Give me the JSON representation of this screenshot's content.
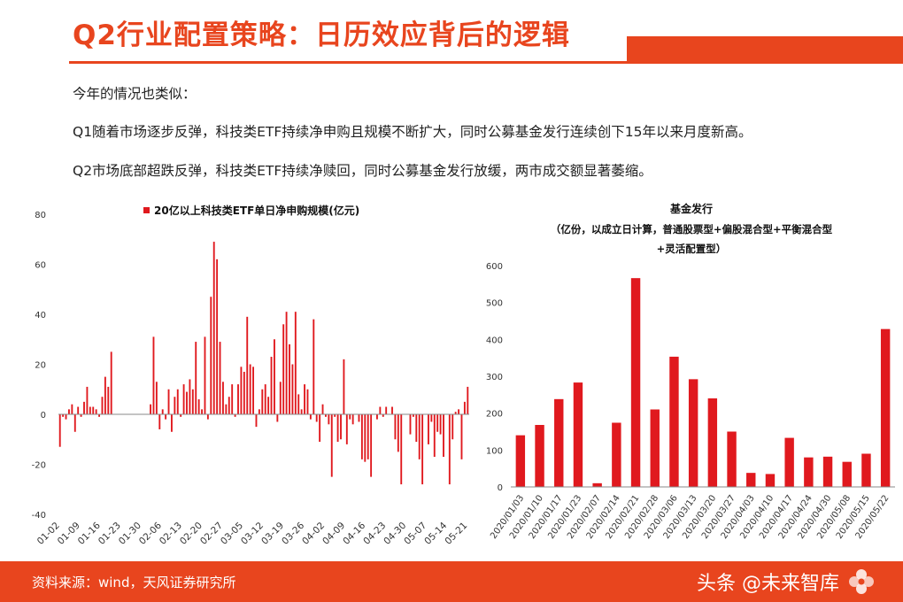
{
  "slide": {
    "title": "Q2行业配置策略：日历效应背后的逻辑",
    "paragraphs": [
      "今年的情况也类似：",
      "Q1随着市场逐步反弹，科技类ETF持续净申购且规模不断扩大，同时公募基金发行连续创下15年以来月度新高。",
      "Q2市场底部超跌反弹，科技类ETF持续净赎回，同时公募基金发行放缓，两市成交额显著萎缩。"
    ],
    "footer_source": "资料来源：wind，天风证券研究所",
    "watermark": "头条 @未来智库",
    "colors": {
      "accent": "#e8451e",
      "bar": "#e0191e"
    }
  },
  "chart_data": [
    {
      "type": "bar",
      "title": "20亿以上科技类ETF单日净申购规模(亿元)",
      "legend": "top",
      "ylim": [
        -40,
        80
      ],
      "yticks": [
        80,
        60,
        40,
        20,
        0,
        -20,
        -40
      ],
      "xtick_labels": [
        "01-02",
        "01-09",
        "01-16",
        "01-23",
        "01-30",
        "02-06",
        "02-13",
        "02-20",
        "02-27",
        "03-05",
        "03-12",
        "03-19",
        "03-26",
        "04-02",
        "04-09",
        "04-16",
        "04-23",
        "04-30",
        "05-07",
        "05-14",
        "05-21"
      ],
      "values": [
        -13,
        -1,
        -2,
        2,
        4,
        -7,
        3,
        -1,
        5,
        11,
        3,
        3,
        2,
        -1,
        7,
        15,
        11,
        25,
        0,
        0,
        0,
        0,
        0,
        0,
        0,
        0,
        0,
        0,
        0,
        0,
        4,
        31,
        13,
        -6,
        2,
        -2,
        10,
        -7,
        7,
        10,
        -1,
        12,
        9,
        14,
        10,
        29,
        6,
        2,
        31,
        -2,
        47,
        69,
        62,
        29,
        13,
        4,
        7,
        12,
        -1,
        12,
        19,
        17,
        39,
        20,
        19,
        -5,
        2,
        10,
        12,
        7,
        23,
        30,
        -3,
        13,
        36,
        41,
        28,
        20,
        41,
        8,
        2,
        12,
        10,
        -2,
        38,
        -3,
        -11,
        4,
        -1,
        -4,
        -25,
        -1,
        -11,
        -10,
        22,
        -12,
        -2,
        -4,
        0,
        -3,
        -18,
        -19,
        -18,
        -25,
        0,
        -2,
        3,
        -1,
        3,
        0,
        3,
        -10,
        -15,
        -28,
        0,
        0,
        -8,
        -1,
        -11,
        -18,
        -28,
        0,
        -12,
        -3,
        -17,
        -7,
        -8,
        -17,
        0,
        -28,
        -10,
        1,
        2,
        -18,
        5,
        11
      ]
    },
    {
      "type": "bar",
      "title": "基金发行",
      "subtitle": "（亿份，以成立日计算，普通股票型+偏股混合型+平衡混合型+灵活配置型）",
      "ylim": [
        0,
        600
      ],
      "yticks": [
        0,
        100,
        200,
        300,
        400,
        500,
        600
      ],
      "categories": [
        "2020/01/03",
        "2020/01/10",
        "2020/01/17",
        "2020/01/23",
        "2020/02/07",
        "2020/02/14",
        "2020/02/21",
        "2020/02/28",
        "2020/03/06",
        "2020/03/13",
        "2020/03/20",
        "2020/03/27",
        "2020/04/03",
        "2020/04/10",
        "2020/04/17",
        "2020/04/24",
        "2020/04/30",
        "2020/05/08",
        "2020/05/15",
        "2020/05/22"
      ],
      "values": [
        140,
        168,
        238,
        283,
        10,
        174,
        566,
        210,
        353,
        292,
        240,
        150,
        38,
        35,
        133,
        80,
        82,
        68,
        90,
        428
      ]
    }
  ]
}
